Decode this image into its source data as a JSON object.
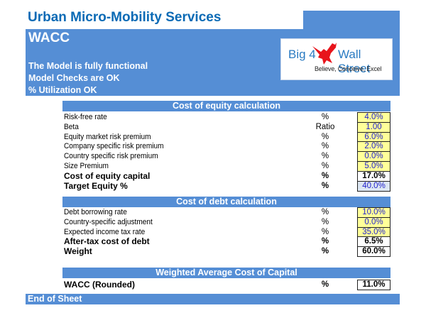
{
  "header": {
    "company": "Urban Micro-Mobility Services",
    "sheet_title": "WACC",
    "status_lines": [
      "The Model is fully functional",
      "Model Checks are OK",
      "% Utilization OK"
    ],
    "logo": {
      "left_text": "Big 4",
      "right_text": "Wall Street",
      "tagline": "Believe, Conceive, Excel",
      "icon": "eagle-icon"
    }
  },
  "colors": {
    "header_blue": "#558ed5",
    "title_blue": "#0a6ab5",
    "input_yellow": "#ffff99",
    "input_text_blue": "#2222cc",
    "link_cell": "#dce6f2"
  },
  "equity": {
    "title": "Cost of equity calculation",
    "rows": [
      {
        "label": "Risk-free rate",
        "unit": "%",
        "value": "4.0%",
        "type": "input"
      },
      {
        "label": "Beta",
        "unit": "Ratio",
        "value": "1.00",
        "type": "input"
      },
      {
        "label": "Equity market risk premium",
        "unit": "%",
        "value": "6.0%",
        "type": "input"
      },
      {
        "label": "Company specific risk premium",
        "unit": "%",
        "value": "2.0%",
        "type": "input"
      },
      {
        "label": "Country specific risk premium",
        "unit": "%",
        "value": "0.0%",
        "type": "input"
      },
      {
        "label": "Size Premium",
        "unit": "%",
        "value": "5.0%",
        "type": "input"
      },
      {
        "label": "Cost of equity capital",
        "unit": "%",
        "value": "17.0%",
        "type": "calc"
      },
      {
        "label": "Target Equity %",
        "unit": "%",
        "value": "40.0%",
        "type": "link"
      }
    ]
  },
  "debt": {
    "title": "Cost of debt calculation",
    "rows": [
      {
        "label": "Debt borrowing rate",
        "unit": "%",
        "value": "10.0%",
        "type": "input"
      },
      {
        "label": "Country-specific adjustment",
        "unit": "%",
        "value": "0.0%",
        "type": "input"
      },
      {
        "label": "Expected income tax rate",
        "unit": "%",
        "value": "35.0%",
        "type": "input"
      },
      {
        "label": "After-tax cost of debt",
        "unit": "%",
        "value": "6.5%",
        "type": "calc"
      },
      {
        "label": "Weight",
        "unit": "%",
        "value": "60.0%",
        "type": "calc"
      }
    ]
  },
  "wacc": {
    "title": "Weighted Average Cost of Capital",
    "rows": [
      {
        "label": "WACC (Rounded)",
        "unit": "%",
        "value": "11.0%",
        "type": "calc"
      }
    ]
  },
  "footer": {
    "label": "End of Sheet"
  }
}
